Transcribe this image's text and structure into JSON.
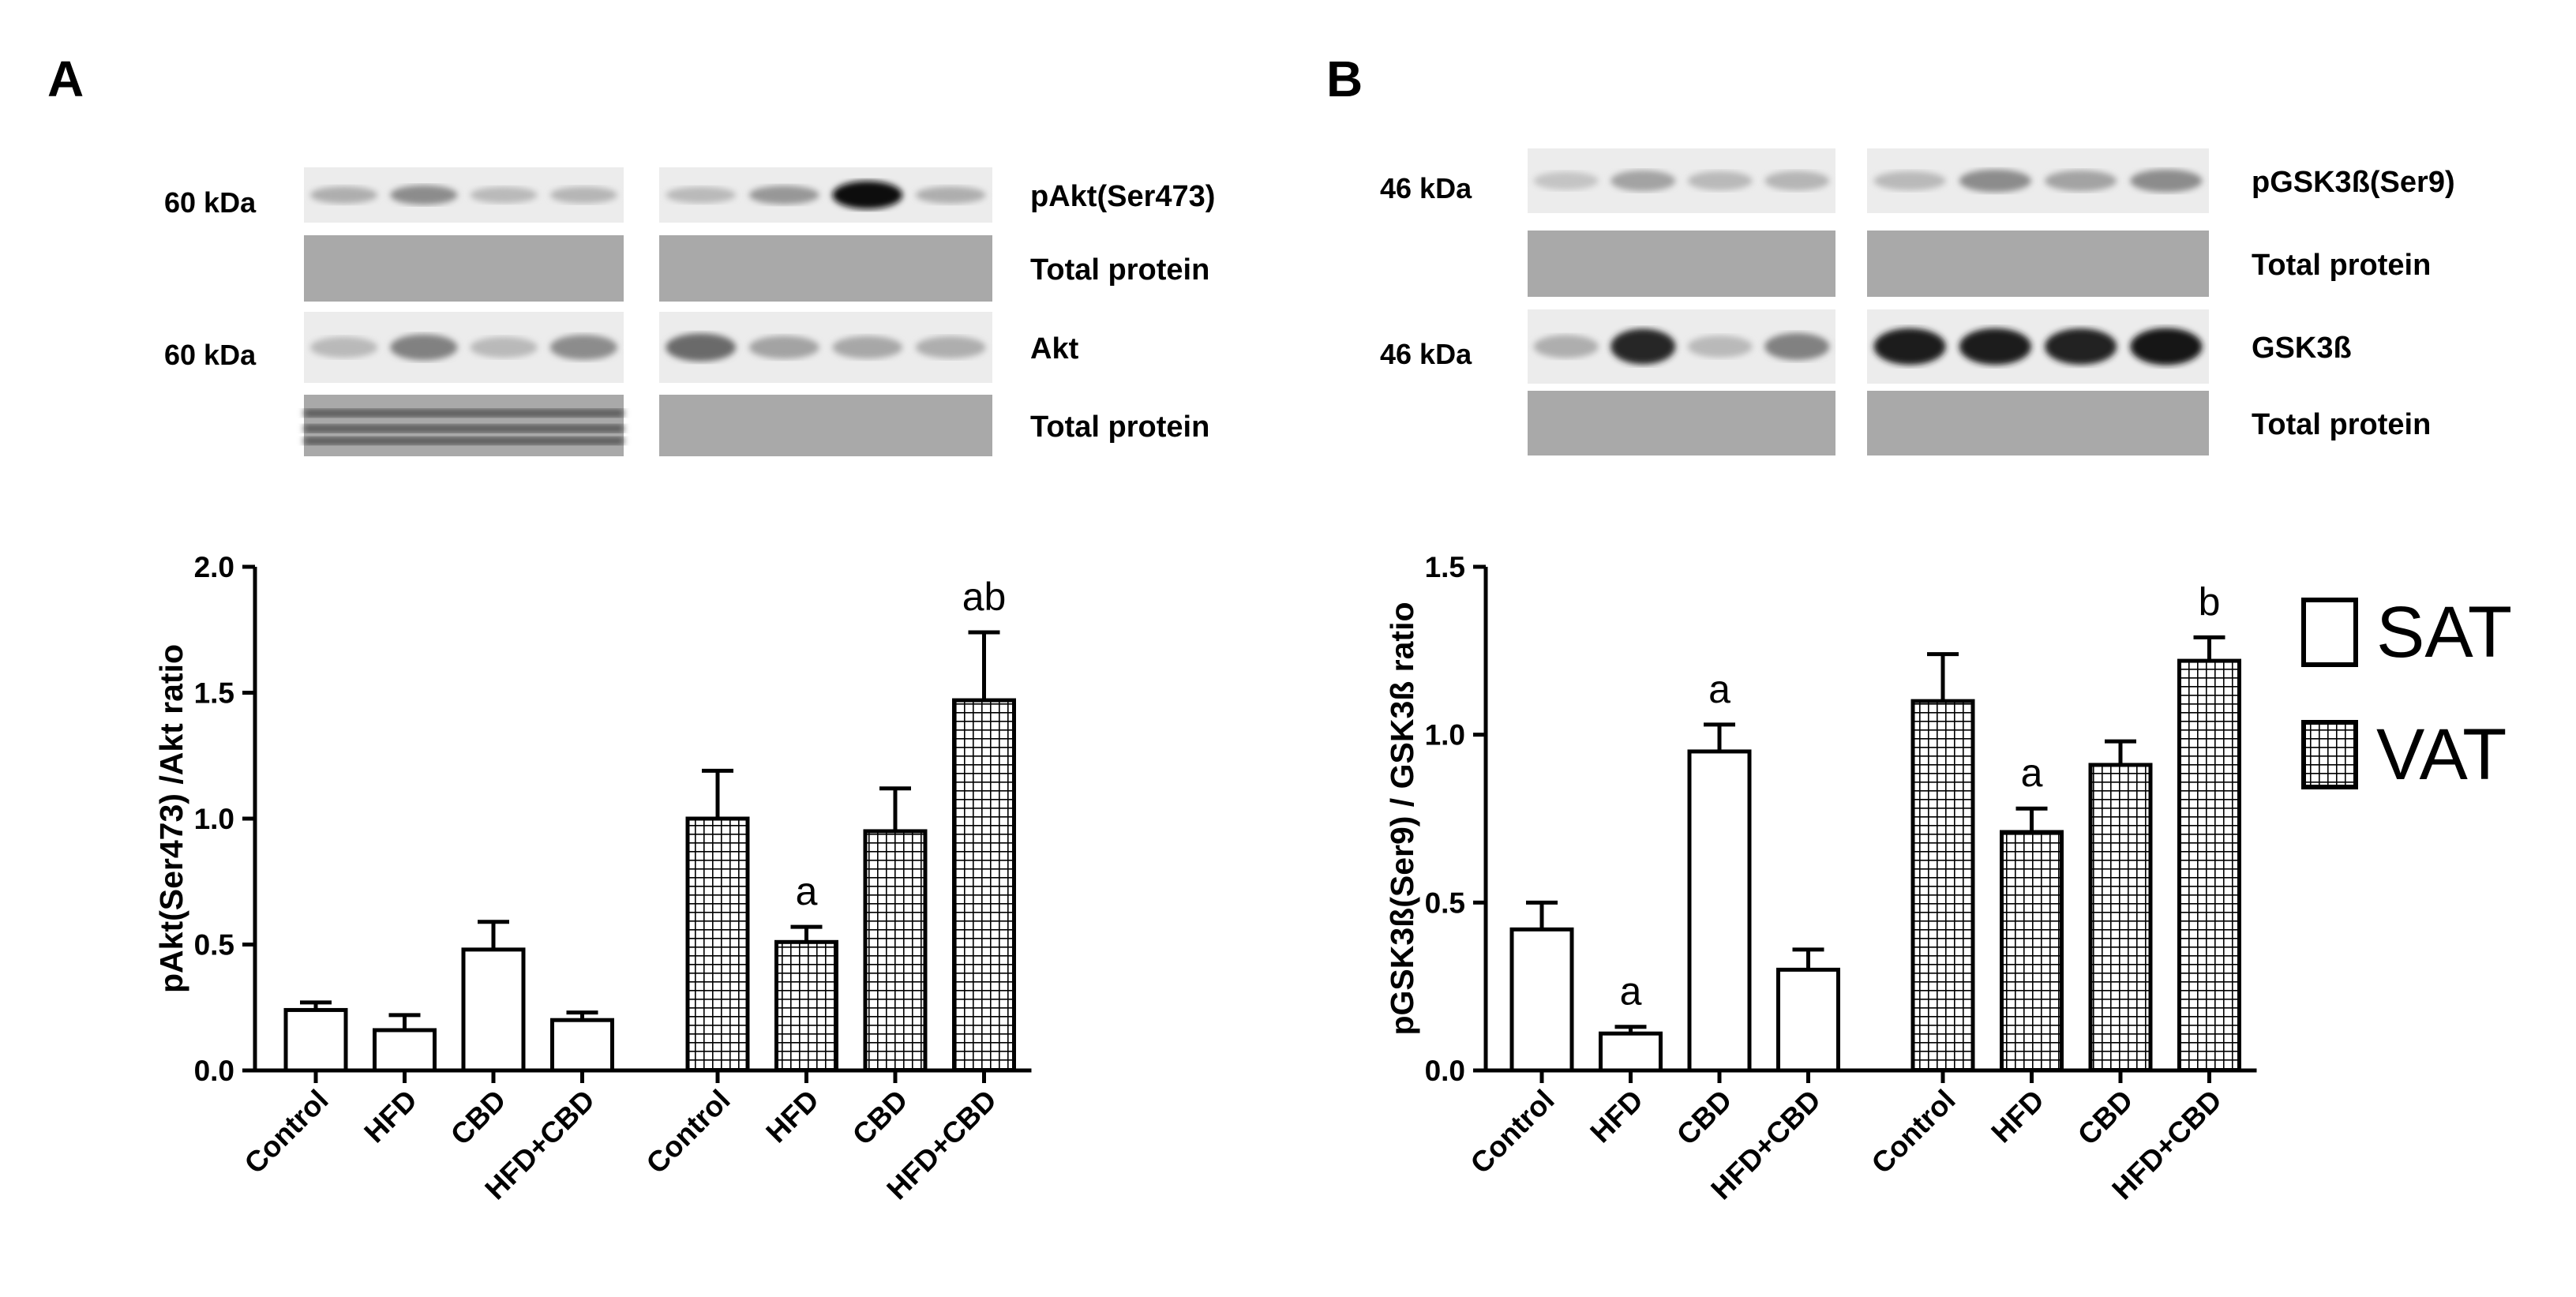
{
  "chart_data": [
    {
      "type": "bar",
      "panel": "A",
      "ylabel": "pAkt(Ser473) /Akt ratio",
      "blot": {
        "rows": [
          {
            "label": "pAkt(Ser473)",
            "kda": "60 kDa"
          },
          {
            "label": "Total protein"
          },
          {
            "label": "Akt",
            "kda": "60 kDa"
          },
          {
            "label": "Total protein"
          }
        ]
      },
      "categories": [
        "Control",
        "HFD",
        "CBD",
        "HFD+CBD",
        "Control",
        "HFD",
        "CBD",
        "HFD+CBD"
      ],
      "series": [
        {
          "name": "SAT",
          "color": "#ffffff",
          "values": [
            0.24,
            0.16,
            0.48,
            0.2,
            null,
            null,
            null,
            null
          ],
          "errors": [
            0.03,
            0.06,
            0.11,
            0.03,
            null,
            null,
            null,
            null
          ]
        },
        {
          "name": "VAT",
          "color": "#ffffff",
          "pattern": "grid",
          "values": [
            null,
            null,
            null,
            null,
            1.0,
            0.51,
            0.95,
            1.47
          ],
          "errors": [
            null,
            null,
            null,
            null,
            0.19,
            0.06,
            0.17,
            0.27
          ]
        }
      ],
      "annotations": [
        null,
        null,
        null,
        null,
        null,
        "a",
        null,
        "ab"
      ],
      "ylim": [
        0,
        2
      ],
      "yticks": [
        {
          "value": 0,
          "label": "0.0"
        },
        0.5,
        {
          "value": 1,
          "label": "1.0"
        },
        1.5,
        {
          "value": 2,
          "label": "2.0"
        }
      ]
    },
    {
      "type": "bar",
      "panel": "B",
      "ylabel": "pGSK3ß(Ser9) / GSK3ß ratio",
      "blot": {
        "rows": [
          {
            "label": "pGSK3ß(Ser9)",
            "kda": "46 kDa"
          },
          {
            "label": "Total protein"
          },
          {
            "label": "GSK3ß",
            "kda": "46 kDa"
          },
          {
            "label": "Total protein"
          }
        ]
      },
      "categories": [
        "Control",
        "HFD",
        "CBD",
        "HFD+CBD",
        "Control",
        "HFD",
        "CBD",
        "HFD+CBD"
      ],
      "series": [
        {
          "name": "SAT",
          "color": "#ffffff",
          "values": [
            0.42,
            0.11,
            0.95,
            0.3,
            null,
            null,
            null,
            null
          ],
          "errors": [
            0.08,
            0.02,
            0.08,
            0.06,
            null,
            null,
            null,
            null
          ]
        },
        {
          "name": "VAT",
          "color": "#ffffff",
          "pattern": "grid",
          "values": [
            null,
            null,
            null,
            null,
            1.1,
            0.71,
            0.91,
            1.22
          ],
          "errors": [
            null,
            null,
            null,
            null,
            0.14,
            0.07,
            0.07,
            0.07
          ]
        }
      ],
      "annotations": [
        null,
        "a",
        "a",
        null,
        null,
        "a",
        null,
        "b"
      ],
      "ylim": [
        0,
        1.5
      ],
      "yticks": [
        {
          "value": 0,
          "label": "0.0"
        },
        0.5,
        {
          "value": 1,
          "label": "1.0"
        },
        1.5
      ]
    }
  ]
}
